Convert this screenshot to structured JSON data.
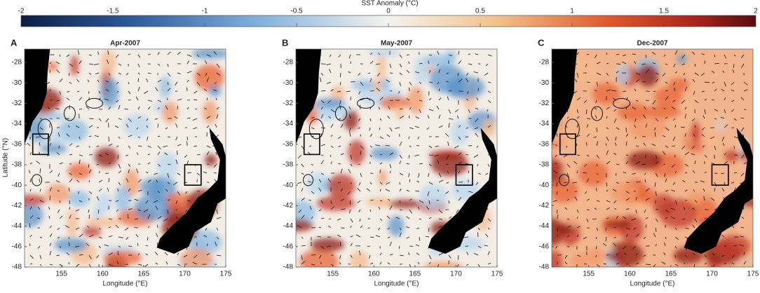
{
  "colorbar": {
    "title": "SST Anomaly (°C)",
    "lim": [
      -2,
      2
    ],
    "ticks": [
      -2,
      -1.5,
      -1,
      -0.5,
      0,
      0.5,
      1,
      1.5,
      2
    ]
  },
  "ylabel": "Latitude (°N)",
  "panels": [
    {
      "letter": "A",
      "title": "Apr-2007",
      "xlabel": "Longitude (°E)",
      "xlim": [
        150.5,
        175
      ],
      "ylim": [
        -48,
        -26.7
      ],
      "xticks": [
        155,
        160,
        165,
        170,
        175
      ],
      "yticks": [
        -28,
        -30,
        -32,
        -34,
        -36,
        -38,
        -40,
        -42,
        -44,
        -46,
        -48
      ]
    },
    {
      "letter": "B",
      "title": "May-2007",
      "xlabel": "Longitude (°E)",
      "xlim": [
        150.5,
        175
      ],
      "ylim": [
        -48,
        -26.7
      ],
      "xticks": [
        155,
        160,
        165,
        170,
        175
      ],
      "yticks": [
        -28,
        -30,
        -32,
        -34,
        -36,
        -38,
        -40,
        -42,
        -44,
        -46,
        -48
      ]
    },
    {
      "letter": "C",
      "title": "Dec-2007",
      "xlabel": "Longitude (°E)",
      "xlim": [
        150.5,
        175
      ],
      "ylim": [
        -48,
        -26.7
      ],
      "xticks": [
        155,
        160,
        165,
        170,
        175
      ],
      "yticks": [
        -28,
        -30,
        -32,
        -34,
        -36,
        -38,
        -40,
        -42,
        -44,
        -46,
        -48
      ]
    }
  ]
}
